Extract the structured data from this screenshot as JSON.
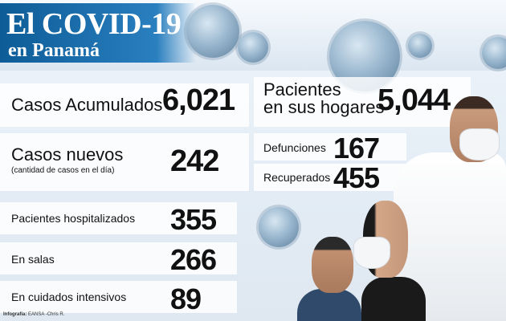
{
  "title": {
    "line1": "El COVID-19",
    "line2": "en Panamá"
  },
  "stats": {
    "casos_acumulados": {
      "label": "Casos Acumulados",
      "value": "6,021"
    },
    "pacientes_hogares": {
      "label_line1": "Pacientes",
      "label_line2": "en sus hogares",
      "value": "5,044"
    },
    "casos_nuevos": {
      "label": "Casos nuevos",
      "sublabel": "(cantidad de casos en el día)",
      "value": "242"
    },
    "defunciones": {
      "label": "Defunciones",
      "value": "167"
    },
    "recuperados": {
      "label": "Recuperados",
      "value": "455"
    },
    "hospitalizados": {
      "label": "Pacientes hospitalizados",
      "value": "355"
    },
    "en_salas": {
      "label": "En salas",
      "value": "266"
    },
    "cuidados_intensivos": {
      "label": "En cuidados intensivos",
      "value": "89"
    }
  },
  "credit": {
    "prefix": "Infografía:",
    "text": "EANSA -Chris R."
  },
  "colors": {
    "title_band": "#0d5c97",
    "panel": "#ffffff",
    "background": "#e3ecf5"
  }
}
